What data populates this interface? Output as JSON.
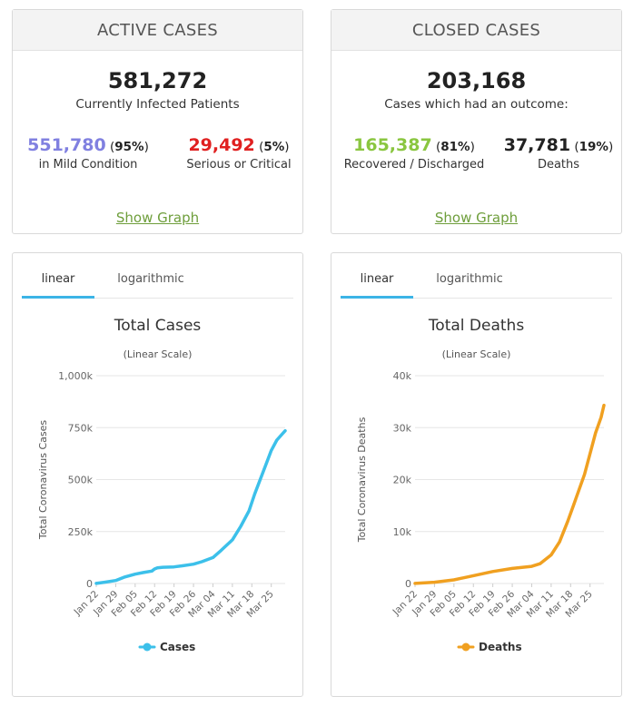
{
  "active": {
    "header": "ACTIVE CASES",
    "total": "581,272",
    "total_label": "Currently Infected Patients",
    "mild_value": "551,780",
    "mild_pct": "95%",
    "mild_label": "in Mild Condition",
    "serious_value": "29,492",
    "serious_pct": "5%",
    "serious_label": "Serious or Critical",
    "show_graph": "Show Graph",
    "colors": {
      "mild": "#8080e0",
      "serious": "#e02020"
    }
  },
  "closed": {
    "header": "CLOSED CASES",
    "total": "203,168",
    "total_label": "Cases which had an outcome:",
    "recovered_value": "165,387",
    "recovered_pct": "81%",
    "recovered_label": "Recovered / Discharged",
    "deaths_value": "37,781",
    "deaths_pct": "19%",
    "deaths_label": "Deaths",
    "show_graph": "Show Graph",
    "colors": {
      "recovered": "#8ac640",
      "deaths": "#222222"
    }
  },
  "cases_chart": {
    "tab_linear": "linear",
    "tab_log": "logarithmic",
    "active_tab": "linear"
  },
  "deaths_chart": {
    "tab_linear": "linear",
    "tab_log": "logarithmic",
    "active_tab": "linear"
  },
  "chart_data": [
    {
      "type": "line",
      "title": "Total Cases",
      "subtitle": "(Linear Scale)",
      "ylabel": "Total Coronavirus Cases",
      "xlabel": "",
      "ylim": [
        0,
        1000000
      ],
      "yticks": [
        0,
        250000,
        500000,
        750000,
        1000000
      ],
      "ytick_labels": [
        "0",
        "250k",
        "500k",
        "750k",
        "1,000k"
      ],
      "xtick_labels": [
        "Jan 22",
        "Jan 29",
        "Feb 05",
        "Feb 12",
        "Feb 19",
        "Feb 26",
        "Mar 04",
        "Mar 11",
        "Mar 18",
        "Mar 25"
      ],
      "grid": true,
      "legend": "bottom",
      "color": "#3cc0ea",
      "series": [
        {
          "name": "Cases",
          "x": [
            0,
            3,
            7,
            10,
            14,
            17,
            20,
            21,
            22,
            24,
            28,
            31,
            35,
            38,
            42,
            45,
            49,
            52,
            55,
            57,
            59,
            61,
            63,
            65,
            67,
            68
          ],
          "values": [
            600,
            6000,
            14500,
            30000,
            45000,
            53000,
            60000,
            70000,
            75000,
            78000,
            80000,
            85000,
            93000,
            105000,
            125000,
            160000,
            210000,
            275000,
            350000,
            430000,
            500000,
            570000,
            640000,
            690000,
            720000,
            735000
          ]
        }
      ]
    },
    {
      "type": "line",
      "title": "Total Deaths",
      "subtitle": "(Linear Scale)",
      "ylabel": "Total Coronavirus Deaths",
      "xlabel": "",
      "ylim": [
        0,
        40000
      ],
      "yticks": [
        0,
        10000,
        20000,
        30000,
        40000
      ],
      "ytick_labels": [
        "0",
        "10k",
        "20k",
        "30k",
        "40k"
      ],
      "xtick_labels": [
        "Jan 22",
        "Jan 29",
        "Feb 05",
        "Feb 12",
        "Feb 19",
        "Feb 26",
        "Mar 04",
        "Mar 11",
        "Mar 18",
        "Mar 25"
      ],
      "grid": true,
      "legend": "bottom",
      "color": "#f0a020",
      "series": [
        {
          "name": "Deaths",
          "x": [
            0,
            7,
            14,
            21,
            28,
            35,
            42,
            45,
            49,
            52,
            55,
            57,
            59,
            61,
            63,
            65,
            67,
            68
          ],
          "values": [
            17,
            250,
            700,
            1500,
            2300,
            2900,
            3300,
            3800,
            5500,
            8000,
            12000,
            15000,
            18000,
            21000,
            25000,
            29000,
            32000,
            34300
          ]
        }
      ]
    }
  ]
}
